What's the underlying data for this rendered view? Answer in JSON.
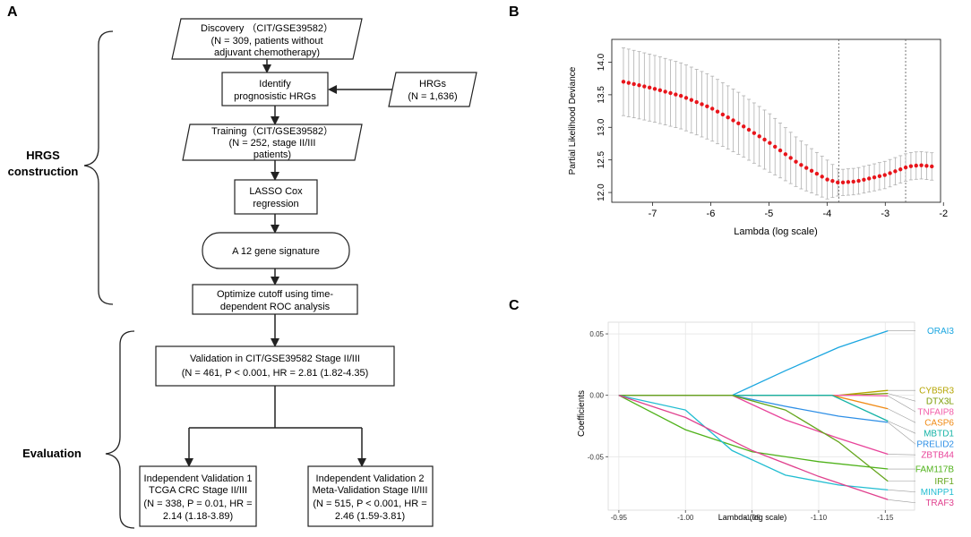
{
  "panels": {
    "a": "A",
    "b": "B",
    "c": "C"
  },
  "flow": {
    "discovery": {
      "l1": "Discovery （CIT/GSE39582）",
      "l2": "(N = 309, patients without",
      "l3": "adjuvant chemotherapy)"
    },
    "identify": {
      "l1": "Identify",
      "l2": "prognosistic HRGs"
    },
    "hrgs": {
      "l1": "HRGs",
      "l2": "(N = 1,636)"
    },
    "training": {
      "l1": "Training（CIT/GSE39582）",
      "l2": "(N = 252, stage II/III",
      "l3": "patients)"
    },
    "lasso": {
      "l1": "LASSO Cox",
      "l2": "regression"
    },
    "signature": "A 12 gene signature",
    "optimize": {
      "l1": "Optimize cutoff using time-",
      "l2": "dependent ROC analysis"
    },
    "validation": {
      "l1": "Validation in CIT/GSE39582 Stage II/III",
      "l2": "(N = 461, P < 0.001, HR = 2.81 (1.82-4.35)"
    },
    "indep1": {
      "l1": "Independent Validation 1",
      "l2": "TCGA CRC Stage II/III",
      "l3": "(N = 338, P = 0.01, HR =",
      "l4": "2.14 (1.18-3.89)"
    },
    "indep2": {
      "l1": "Independent Validation 2",
      "l2": "Meta-Validation Stage II/III",
      "l3": "(N = 515, P < 0.001, HR =",
      "l4": "2.46 (1.59-3.81)"
    },
    "brace_hrgs": {
      "l1": "HRGS",
      "l2": "construction"
    },
    "brace_eval": "Evaluation"
  },
  "chart_data": [
    {
      "type": "line",
      "title": "",
      "xlabel": "Lambda (log scale)",
      "ylabel": "Partial Likelihood Deviance",
      "xlim": [
        -7.7,
        -2.05
      ],
      "ylim": [
        11.85,
        14.35
      ],
      "xticks": [
        "-7",
        "-6",
        "-5",
        "-4",
        "-3",
        "-2"
      ],
      "xtick_values": [
        -7,
        -6,
        -5,
        -4,
        -3,
        -2
      ],
      "yticks": [
        "12.0",
        "12.5",
        "13.0",
        "13.5",
        "14.0"
      ],
      "ytick_values": [
        12.0,
        12.5,
        13.0,
        13.5,
        14.0
      ],
      "x_start": -7.5,
      "x_end": -2.2,
      "n_points": 60,
      "mean_knots": [
        [
          -7.5,
          13.7
        ],
        [
          -7.0,
          13.6
        ],
        [
          -6.5,
          13.48
        ],
        [
          -6.0,
          13.3
        ],
        [
          -5.5,
          13.05
        ],
        [
          -5.0,
          12.77
        ],
        [
          -4.5,
          12.45
        ],
        [
          -4.0,
          12.2
        ],
        [
          -3.8,
          12.15
        ],
        [
          -3.5,
          12.17
        ],
        [
          -3.0,
          12.27
        ],
        [
          -2.6,
          12.4
        ],
        [
          -2.4,
          12.42
        ],
        [
          -2.2,
          12.4
        ]
      ],
      "error_knots": [
        [
          -7.5,
          0.52
        ],
        [
          -6.0,
          0.5
        ],
        [
          -5.0,
          0.45
        ],
        [
          -4.0,
          0.3
        ],
        [
          -3.8,
          0.2
        ],
        [
          -3.0,
          0.21
        ],
        [
          -2.2,
          0.21
        ]
      ],
      "vlines": [
        -3.8,
        -2.65
      ],
      "point_color": "#e8151b",
      "bar_color": "#b0b0b0"
    },
    {
      "type": "line",
      "title": "",
      "xlabel": "Lambda (log scale)",
      "ylabel": "Coefficients",
      "xlim": [
        -0.942,
        -1.172
      ],
      "ylim": [
        -0.0935,
        0.0595
      ],
      "xticks": [
        "-0.95",
        "-1.00",
        "-1.05",
        "-1.10",
        "-1.15"
      ],
      "xtick_values": [
        -0.95,
        -1.0,
        -1.05,
        -1.1,
        -1.15
      ],
      "yticks": [
        "0.05",
        "0.00",
        "-0.05"
      ],
      "ytick_values": [
        0.05,
        0.0,
        -0.05
      ],
      "series": [
        {
          "name": "ORAI3",
          "color": "#1aa6e0",
          "points": [
            [
              -0.95,
              0
            ],
            [
              -1.035,
              0
            ],
            [
              -1.075,
              0.02
            ],
            [
              -1.115,
              0.039
            ],
            [
              -1.152,
              0.0525
            ]
          ]
        },
        {
          "name": "CYB5R3",
          "color": "#b5a400",
          "points": [
            [
              -0.95,
              0
            ],
            [
              -1.115,
              0
            ],
            [
              -1.152,
              0.004
            ]
          ]
        },
        {
          "name": "DTX3L",
          "color": "#7a9a01",
          "points": [
            [
              -0.95,
              0
            ],
            [
              -1.12,
              0
            ],
            [
              -1.152,
              0.0015
            ]
          ]
        },
        {
          "name": "TNFAIP8",
          "color": "#f25ca8",
          "points": [
            [
              -0.95,
              0
            ],
            [
              -1.13,
              0
            ],
            [
              -1.152,
              -0.0005
            ]
          ]
        },
        {
          "name": "CASP6",
          "color": "#f08a14",
          "points": [
            [
              -0.95,
              0
            ],
            [
              -1.11,
              0
            ],
            [
              -1.152,
              -0.011
            ]
          ]
        },
        {
          "name": "PRELID2",
          "color": "#2e8fe6",
          "points": [
            [
              -0.95,
              0
            ],
            [
              -1.035,
              0
            ],
            [
              -1.075,
              -0.009
            ],
            [
              -1.115,
              -0.017
            ],
            [
              -1.152,
              -0.022
            ]
          ]
        },
        {
          "name": "MBTD1",
          "color": "#15b3a6",
          "points": [
            [
              -0.95,
              0
            ],
            [
              -1.11,
              0
            ],
            [
              -1.152,
              -0.021
            ]
          ]
        },
        {
          "name": "ZBTB44",
          "color": "#e8439a",
          "points": [
            [
              -0.95,
              0
            ],
            [
              -1.035,
              0
            ],
            [
              -1.075,
              -0.02
            ],
            [
              -1.115,
              -0.035
            ],
            [
              -1.152,
              -0.048
            ]
          ]
        },
        {
          "name": "FAM117B",
          "color": "#4fb21a",
          "points": [
            [
              -0.95,
              0
            ],
            [
              -1.0,
              -0.028
            ],
            [
              -1.05,
              -0.046
            ],
            [
              -1.1,
              -0.054
            ],
            [
              -1.152,
              -0.06
            ]
          ]
        },
        {
          "name": "IRF1",
          "color": "#66a61e",
          "points": [
            [
              -0.95,
              0
            ],
            [
              -1.035,
              0
            ],
            [
              -1.075,
              -0.012
            ],
            [
              -1.115,
              -0.038
            ],
            [
              -1.152,
              -0.07
            ]
          ]
        },
        {
          "name": "MINPP1",
          "color": "#21bdd1",
          "points": [
            [
              -0.95,
              0
            ],
            [
              -1.0,
              -0.012
            ],
            [
              -1.035,
              -0.045
            ],
            [
              -1.075,
              -0.065
            ],
            [
              -1.115,
              -0.073
            ],
            [
              -1.152,
              -0.077
            ]
          ]
        },
        {
          "name": "TRAF3",
          "color": "#e0418e",
          "points": [
            [
              -0.95,
              0
            ],
            [
              -1.0,
              -0.018
            ],
            [
              -1.05,
              -0.045
            ],
            [
              -1.1,
              -0.066
            ],
            [
              -1.152,
              -0.085
            ]
          ]
        }
      ]
    }
  ]
}
